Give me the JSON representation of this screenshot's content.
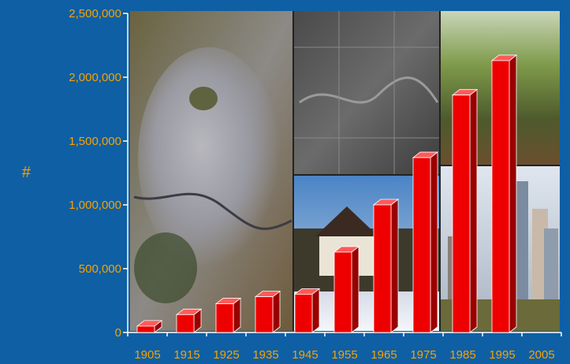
{
  "chart_data": {
    "type": "bar",
    "title": "",
    "xlabel": "",
    "ylabel": "#",
    "categories": [
      "1905",
      "1915",
      "1925",
      "1935",
      "1945",
      "1955",
      "1965",
      "1975",
      "1985",
      "1995",
      "2005"
    ],
    "values": [
      50000,
      140000,
      225000,
      280000,
      300000,
      630000,
      1000000,
      1370000,
      1860000,
      2130000,
      0
    ],
    "ylim": [
      0,
      2500000
    ],
    "yticks": [
      0,
      500000,
      1000000,
      1500000,
      2000000,
      2500000
    ],
    "ytick_labels": [
      "0",
      "500,000",
      "1,000,000",
      "1,500,000",
      "2,000,000",
      "2,500,000"
    ],
    "grid": false,
    "legend": "none",
    "colors": {
      "background": "#0f5fa4",
      "bar": "#ee0000",
      "bar_top": "#ff5a5a",
      "bar_side": "#9a0000",
      "axis": "#ffffff",
      "text": "#f5a300"
    }
  }
}
